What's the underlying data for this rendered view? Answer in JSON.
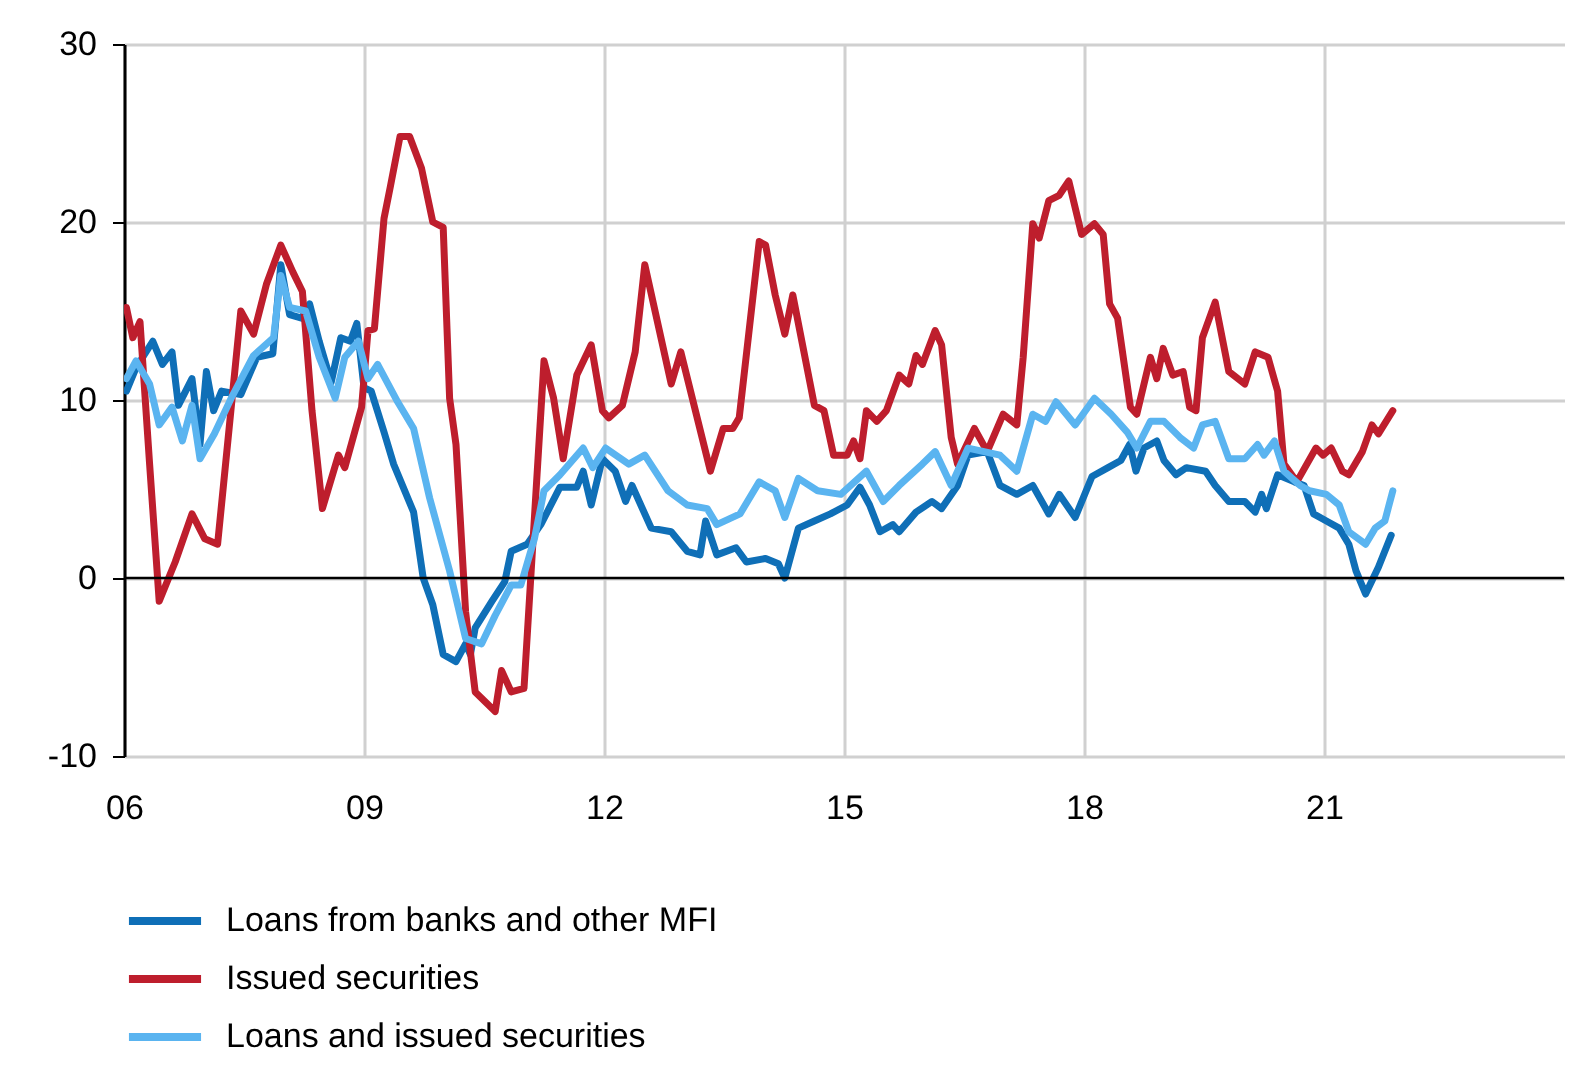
{
  "chart_data": {
    "type": "line",
    "xlim": [
      2006,
      2024
    ],
    "ylim": [
      -10,
      30
    ],
    "xticks": [
      {
        "value": 2006,
        "label": "06"
      },
      {
        "value": 2009,
        "label": "09"
      },
      {
        "value": 2012,
        "label": "12"
      },
      {
        "value": 2015,
        "label": "15"
      },
      {
        "value": 2018,
        "label": "18"
      },
      {
        "value": 2021,
        "label": "21"
      }
    ],
    "yticks": [
      -10,
      0,
      10,
      20,
      30
    ],
    "grid": true,
    "legend": "bottom left",
    "line_style": "solid",
    "marker": "none",
    "ref_lines": [
      {
        "axis": "y",
        "value": 0,
        "color": "#000000"
      }
    ],
    "series": [
      {
        "name": "Loans from banks and other MFI",
        "color": "#0f6fb7",
        "x": [
          2006.03,
          2006.15,
          2006.36,
          2006.48,
          2006.6,
          2006.68,
          2006.85,
          2006.95,
          2007.03,
          2007.12,
          2007.22,
          2007.46,
          2007.66,
          2007.86,
          2007.96,
          2008.07,
          2008.22,
          2008.32,
          2008.44,
          2008.59,
          2008.71,
          2008.83,
          2008.91,
          2009.0,
          2009.09,
          2009.25,
          2009.37,
          2009.62,
          2009.74,
          2009.86,
          2009.99,
          2010.15,
          2010.27,
          2010.33,
          2010.39,
          2010.6,
          2010.76,
          2010.84,
          2011.04,
          2011.21,
          2011.45,
          2011.66,
          2011.74,
          2011.84,
          2011.98,
          2012.14,
          2012.27,
          2012.35,
          2012.59,
          2012.84,
          2013.04,
          2013.2,
          2013.27,
          2013.41,
          2013.65,
          2013.78,
          2014.02,
          2014.18,
          2014.26,
          2014.43,
          2014.63,
          2014.83,
          2015.04,
          2015.2,
          2015.32,
          2015.45,
          2015.61,
          2015.69,
          2015.9,
          2016.1,
          2016.22,
          2016.42,
          2016.55,
          2016.79,
          2016.95,
          2017.16,
          2017.36,
          2017.56,
          2017.69,
          2017.89,
          2018.1,
          2018.3,
          2018.46,
          2018.57,
          2018.65,
          2018.75,
          2018.91,
          2019.0,
          2019.15,
          2019.28,
          2019.52,
          2019.64,
          2019.81,
          2020.01,
          2020.14,
          2020.22,
          2020.28,
          2020.42,
          2020.63,
          2020.75,
          2020.87,
          2021.03,
          2021.19,
          2021.31,
          2021.4,
          2021.52,
          2021.68,
          2021.84
        ],
        "values": [
          10.5,
          11.8,
          13.3,
          12,
          12.7,
          9.7,
          11.2,
          7.5,
          11.6,
          9.4,
          10.5,
          10.3,
          12.4,
          12.6,
          17.6,
          14.8,
          14.6,
          15.4,
          13.3,
          11,
          13.5,
          13.3,
          14.3,
          10.7,
          10.5,
          8.2,
          6.4,
          3.7,
          0,
          -1.5,
          -4.3,
          -4.7,
          -3.7,
          -4.3,
          -2.8,
          -1.3,
          -0.2,
          1.5,
          1.9,
          3,
          5.1,
          5.1,
          6,
          4.1,
          6.7,
          6,
          4.3,
          5.2,
          2.8,
          2.6,
          1.5,
          1.3,
          3.2,
          1.3,
          1.7,
          0.9,
          1.1,
          0.8,
          0,
          2.8,
          3.2,
          3.6,
          4.1,
          5.1,
          4.1,
          2.6,
          3,
          2.6,
          3.7,
          4.3,
          3.9,
          5.2,
          6.9,
          7.1,
          5.2,
          4.7,
          5.2,
          3.6,
          4.7,
          3.4,
          5.7,
          6.2,
          6.6,
          7.5,
          6,
          7.3,
          7.7,
          6.6,
          5.8,
          6.2,
          6,
          5.2,
          4.3,
          4.3,
          3.7,
          4.7,
          3.9,
          5.8,
          5.4,
          5.2,
          3.6,
          3.2,
          2.8,
          1.9,
          0.4,
          -0.9,
          0.6,
          2.4
        ]
      },
      {
        "name": "Issued securities",
        "color": "#be1e2d",
        "x": [
          2006.03,
          2006.11,
          2006.2,
          2006.32,
          2006.44,
          2006.64,
          2006.85,
          2007.01,
          2007.17,
          2007.46,
          2007.62,
          2007.78,
          2007.96,
          2008.11,
          2008.23,
          2008.35,
          2008.48,
          2008.68,
          2008.76,
          2008.97,
          2009.05,
          2009.13,
          2009.25,
          2009.33,
          2009.45,
          2009.57,
          2009.72,
          2009.86,
          2009.99,
          2010.07,
          2010.15,
          2010.27,
          2010.39,
          2010.64,
          2010.72,
          2010.84,
          2011.0,
          2011.25,
          2011.37,
          2011.49,
          2011.66,
          2011.84,
          2011.98,
          2012.06,
          2012.23,
          2012.39,
          2012.51,
          2012.84,
          2012.96,
          2013.33,
          2013.49,
          2013.61,
          2013.69,
          2013.94,
          2014.02,
          2014.14,
          2014.26,
          2014.36,
          2014.63,
          2014.75,
          2014.87,
          2015.04,
          2015.12,
          2015.2,
          2015.28,
          2015.41,
          2015.53,
          2015.69,
          2015.81,
          2015.9,
          2015.98,
          2016.14,
          2016.22,
          2016.34,
          2016.42,
          2016.63,
          2016.79,
          2016.99,
          2017.16,
          2017.24,
          2017.36,
          2017.44,
          2017.56,
          2017.69,
          2017.81,
          2017.97,
          2018.13,
          2018.24,
          2018.32,
          2018.42,
          2018.58,
          2018.66,
          2018.83,
          2018.91,
          2018.99,
          2019.11,
          2019.24,
          2019.32,
          2019.4,
          2019.48,
          2019.64,
          2019.81,
          2020.01,
          2020.14,
          2020.3,
          2020.42,
          2020.5,
          2020.66,
          2020.9,
          2020.99,
          2021.09,
          2021.23,
          2021.31,
          2021.48,
          2021.6,
          2021.68,
          2021.86
        ],
        "values": [
          15.2,
          13.5,
          14.4,
          6.4,
          -1.3,
          0.9,
          3.6,
          2.2,
          1.9,
          15,
          13.7,
          16.5,
          18.7,
          17.2,
          16.1,
          9.4,
          3.9,
          6.9,
          6.2,
          9.6,
          13.9,
          14,
          20.2,
          22,
          24.8,
          24.8,
          23,
          20,
          19.7,
          10.1,
          7.5,
          -1.9,
          -6.4,
          -7.5,
          -5.2,
          -6.4,
          -6.2,
          12.2,
          10.1,
          6.7,
          11.4,
          13.1,
          9.4,
          9,
          9.7,
          12.7,
          17.6,
          10.9,
          12.7,
          6,
          8.4,
          8.4,
          9,
          18.9,
          18.7,
          15.9,
          13.7,
          15.9,
          9.7,
          9.4,
          6.9,
          6.9,
          7.7,
          6.7,
          9.4,
          8.8,
          9.4,
          11.4,
          10.9,
          12.5,
          12,
          13.9,
          13.1,
          7.9,
          6.4,
          8.4,
          7.1,
          9.2,
          8.6,
          12.4,
          19.9,
          19.1,
          21.2,
          21.5,
          22.3,
          19.3,
          19.9,
          19.3,
          15.4,
          14.6,
          9.6,
          9.2,
          12.4,
          11.2,
          12.9,
          11.4,
          11.6,
          9.6,
          9.4,
          13.5,
          15.5,
          11.6,
          10.9,
          12.7,
          12.4,
          10.5,
          6.4,
          5.4,
          7.3,
          6.9,
          7.3,
          6,
          5.8,
          7.1,
          8.6,
          8.1,
          9.4
        ]
      },
      {
        "name": "Loans and issued securities",
        "color": "#5ab4f0",
        "x": [
          2006.03,
          2006.15,
          2006.32,
          2006.44,
          2006.6,
          2006.73,
          2006.85,
          2006.95,
          2007.13,
          2007.34,
          2007.62,
          2007.87,
          2007.96,
          2008.07,
          2008.27,
          2008.44,
          2008.64,
          2008.76,
          2008.93,
          2009.05,
          2009.17,
          2009.42,
          2009.62,
          2009.82,
          2010.07,
          2010.27,
          2010.47,
          2010.64,
          2010.84,
          2010.96,
          2011.13,
          2011.25,
          2011.45,
          2011.74,
          2011.86,
          2012.02,
          2012.31,
          2012.51,
          2012.8,
          2013.04,
          2013.29,
          2013.41,
          2013.7,
          2013.94,
          2014.14,
          2014.26,
          2014.43,
          2014.67,
          2014.96,
          2015.28,
          2015.49,
          2015.69,
          2015.98,
          2016.14,
          2016.34,
          2016.55,
          2016.95,
          2017.16,
          2017.36,
          2017.52,
          2017.65,
          2017.89,
          2018.13,
          2018.34,
          2018.54,
          2018.66,
          2018.83,
          2019.0,
          2019.2,
          2019.37,
          2019.48,
          2019.64,
          2019.81,
          2020.01,
          2020.17,
          2020.25,
          2020.38,
          2020.5,
          2020.7,
          2020.82,
          2021.03,
          2021.19,
          2021.31,
          2021.52,
          2021.64,
          2021.76,
          2021.86
        ],
        "values": [
          11.2,
          12.2,
          10.9,
          8.6,
          9.6,
          7.7,
          9.7,
          6.7,
          8.1,
          10.1,
          12.5,
          13.5,
          17,
          15.2,
          15,
          12.4,
          10.1,
          12.4,
          13.3,
          11.2,
          12,
          9.9,
          8.4,
          4.5,
          0.4,
          -3.4,
          -3.7,
          -2.1,
          -0.4,
          -0.4,
          2.2,
          4.9,
          5.8,
          7.3,
          6.2,
          7.3,
          6.4,
          6.9,
          4.9,
          4.1,
          3.9,
          3,
          3.6,
          5.4,
          4.9,
          3.4,
          5.6,
          4.9,
          4.7,
          6,
          4.3,
          5.2,
          6.4,
          7.1,
          5.2,
          7.3,
          6.9,
          6,
          9.2,
          8.8,
          9.9,
          8.6,
          10.1,
          9.2,
          8.2,
          7.3,
          8.8,
          8.8,
          7.9,
          7.3,
          8.6,
          8.8,
          6.7,
          6.7,
          7.5,
          6.9,
          7.7,
          6,
          5.2,
          4.9,
          4.7,
          4.1,
          2.6,
          1.9,
          2.8,
          3.2,
          4.9
        ]
      }
    ]
  }
}
